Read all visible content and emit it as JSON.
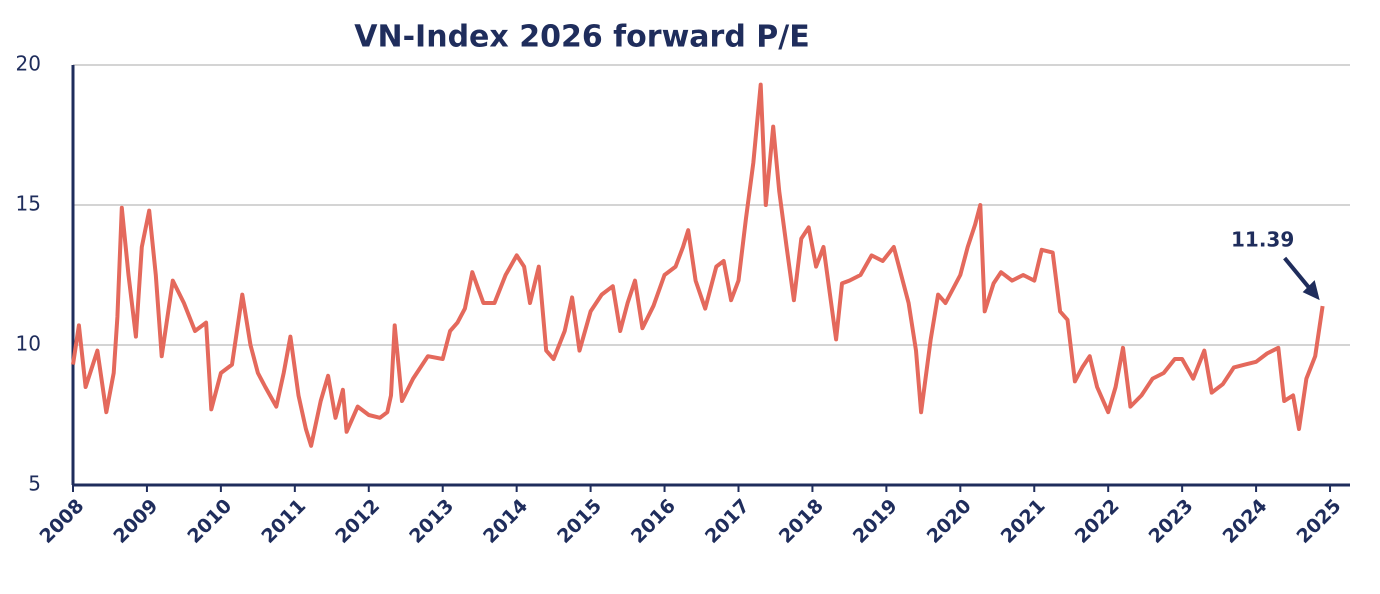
{
  "chart_data": {
    "type": "line",
    "title": "VN-Index 2026 forward P/E",
    "x": [
      2008.0,
      2008.08,
      2008.17,
      2008.33,
      2008.45,
      2008.55,
      2008.6,
      2008.66,
      2008.75,
      2008.85,
      2008.93,
      2009.03,
      2009.12,
      2009.2,
      2009.35,
      2009.5,
      2009.65,
      2009.8,
      2009.87,
      2010.0,
      2010.15,
      2010.29,
      2010.4,
      2010.5,
      2010.6,
      2010.75,
      2010.85,
      2010.94,
      2011.05,
      2011.15,
      2011.22,
      2011.35,
      2011.45,
      2011.55,
      2011.65,
      2011.7,
      2011.85,
      2012.0,
      2012.15,
      2012.25,
      2012.3,
      2012.35,
      2012.45,
      2012.6,
      2012.8,
      2013.0,
      2013.1,
      2013.2,
      2013.3,
      2013.4,
      2013.55,
      2013.7,
      2013.85,
      2014.0,
      2014.1,
      2014.18,
      2014.3,
      2014.4,
      2014.5,
      2014.65,
      2014.75,
      2014.85,
      2015.0,
      2015.15,
      2015.3,
      2015.4,
      2015.5,
      2015.6,
      2015.7,
      2015.85,
      2016.0,
      2016.15,
      2016.25,
      2016.32,
      2016.42,
      2016.55,
      2016.7,
      2016.8,
      2016.9,
      2017.0,
      2017.1,
      2017.2,
      2017.3,
      2017.37,
      2017.47,
      2017.55,
      2017.65,
      2017.75,
      2017.85,
      2017.95,
      2018.05,
      2018.15,
      2018.32,
      2018.4,
      2018.5,
      2018.65,
      2018.8,
      2018.95,
      2019.1,
      2019.2,
      2019.3,
      2019.4,
      2019.47,
      2019.6,
      2019.7,
      2019.8,
      2019.9,
      2020.0,
      2020.1,
      2020.2,
      2020.27,
      2020.33,
      2020.45,
      2020.55,
      2020.7,
      2020.85,
      2021.0,
      2021.1,
      2021.25,
      2021.35,
      2021.45,
      2021.55,
      2021.65,
      2021.75,
      2021.85,
      2022.0,
      2022.1,
      2022.2,
      2022.3,
      2022.45,
      2022.6,
      2022.75,
      2022.9,
      2023.0,
      2023.15,
      2023.3,
      2023.4,
      2023.55,
      2023.7,
      2023.85,
      2024.0,
      2024.15,
      2024.3,
      2024.38,
      2024.5,
      2024.58,
      2024.68,
      2024.8,
      2024.9
    ],
    "series": [
      {
        "name": "VN-Index 2026 forward P/E",
        "color": "#e4695c",
        "values": [
          9.3,
          10.7,
          8.5,
          9.8,
          7.6,
          9.0,
          11.0,
          14.9,
          12.5,
          10.3,
          13.5,
          14.8,
          12.5,
          9.6,
          12.3,
          11.5,
          10.5,
          10.8,
          7.7,
          9.0,
          9.3,
          11.8,
          10.0,
          9.0,
          8.5,
          7.8,
          9.0,
          10.3,
          8.2,
          7.0,
          6.4,
          8.0,
          8.9,
          7.4,
          8.4,
          6.9,
          7.8,
          7.5,
          7.4,
          7.6,
          8.2,
          10.7,
          8.0,
          8.8,
          9.6,
          9.5,
          10.5,
          10.8,
          11.3,
          12.6,
          11.5,
          11.5,
          12.5,
          13.2,
          12.8,
          11.5,
          12.8,
          9.8,
          9.5,
          10.5,
          11.7,
          9.8,
          11.2,
          11.8,
          12.1,
          10.5,
          11.5,
          12.3,
          10.6,
          11.4,
          12.5,
          12.8,
          13.5,
          14.1,
          12.3,
          11.3,
          12.8,
          13.0,
          11.6,
          12.3,
          14.5,
          16.5,
          19.3,
          15.0,
          17.8,
          15.5,
          13.5,
          11.6,
          13.8,
          14.2,
          12.8,
          13.5,
          10.2,
          12.2,
          12.3,
          12.5,
          13.2,
          13.0,
          13.5,
          12.5,
          11.5,
          9.8,
          7.6,
          10.2,
          11.8,
          11.5,
          12.0,
          12.5,
          13.5,
          14.3,
          15.0,
          11.2,
          12.2,
          12.6,
          12.3,
          12.5,
          12.3,
          13.4,
          13.3,
          11.2,
          10.9,
          8.7,
          9.2,
          9.6,
          8.5,
          7.6,
          8.5,
          9.9,
          7.8,
          8.2,
          8.8,
          9.0,
          9.5,
          9.5,
          8.8,
          9.8,
          8.3,
          8.6,
          9.2,
          9.3,
          9.4,
          9.7,
          9.9,
          8.0,
          8.2,
          7.0,
          8.8,
          9.6,
          11.39
        ]
      }
    ],
    "xlim": [
      2008,
      2025.27
    ],
    "xticks": [
      2008,
      2009,
      2010,
      2011,
      2012,
      2013,
      2014,
      2015,
      2016,
      2017,
      2018,
      2019,
      2020,
      2021,
      2022,
      2023,
      2024,
      2025
    ],
    "ylim": [
      5,
      20
    ],
    "yticks": [
      5,
      10,
      15,
      20
    ],
    "grid": true,
    "annotation": "11.39"
  }
}
